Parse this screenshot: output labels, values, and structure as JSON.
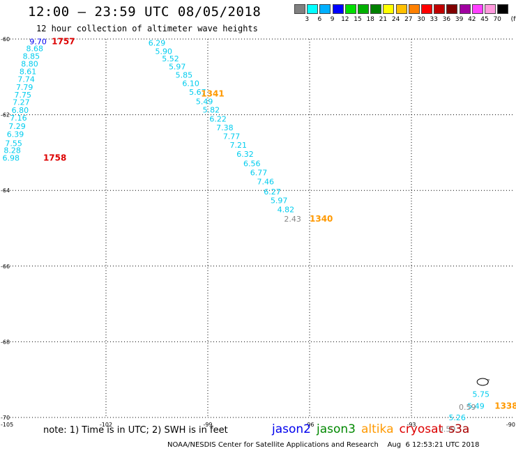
{
  "title": "12:00 – 23:59 UTC 08/05/2018",
  "subtitle": "12 hour collection of altimeter wave heights",
  "legend": {
    "swatches": [
      "#808080",
      "#00ffff",
      "#00b0ff",
      "#0000ff",
      "#00e000",
      "#00b000",
      "#008000",
      "#ffff00",
      "#ffc000",
      "#ff8000",
      "#ff0000",
      "#c00000",
      "#800000",
      "#a000a0",
      "#ff40ff",
      "#ff99dd",
      "#000000"
    ],
    "ticks": [
      "3",
      "6",
      "9",
      "12",
      "15",
      "18",
      "21",
      "24",
      "27",
      "30",
      "33",
      "36",
      "39",
      "42",
      "45",
      "70",
      "(ft)"
    ]
  },
  "note": "note: 1) Time is in UTC; 2) SWH is in feet",
  "satellites": [
    {
      "name": "jason2",
      "color": "#0000ee"
    },
    {
      "name": "jason3",
      "color": "#008800"
    },
    {
      "name": "altika",
      "color": "#ff9900"
    },
    {
      "name": "cryosat",
      "color": "#dd0000"
    },
    {
      "name": "s3a",
      "color": "#aa0000"
    }
  ],
  "footer": "NOAA/NESDIS Center for Satellite Applications and Research    Aug  6 12:53:21 UTC 2018",
  "chart_data": {
    "type": "scatter",
    "xlim": [
      -105,
      -90
    ],
    "ylim": [
      -70,
      -60
    ],
    "xticks": [
      -105,
      -102,
      -99,
      -96,
      -93,
      -90
    ],
    "yticks": [
      -60,
      -62,
      -64,
      -66,
      -68,
      -70
    ],
    "grid": true,
    "series": [
      {
        "name": "cryosat",
        "points": [
          {
            "x": -104.0,
            "y": -60.06,
            "v": "9.70",
            "color": "#0000ee"
          },
          {
            "x": -104.1,
            "y": -60.25,
            "v": "8.68",
            "color": "#00ccee"
          },
          {
            "x": -104.2,
            "y": -60.45,
            "v": "8.85",
            "color": "#00ccee"
          },
          {
            "x": -104.25,
            "y": -60.65,
            "v": "8.80",
            "color": "#00ccee"
          },
          {
            "x": -104.3,
            "y": -60.86,
            "v": "8.61",
            "color": "#00ccee"
          },
          {
            "x": -104.35,
            "y": -61.06,
            "v": "7.74",
            "color": "#00ccee"
          },
          {
            "x": -104.4,
            "y": -61.27,
            "v": "7.79",
            "color": "#00ccee"
          },
          {
            "x": -104.45,
            "y": -61.47,
            "v": "7.75",
            "color": "#00ccee"
          },
          {
            "x": -104.5,
            "y": -61.67,
            "v": "7.27",
            "color": "#00ccee"
          },
          {
            "x": -104.53,
            "y": -61.88,
            "v": "6.80",
            "color": "#00ccee"
          },
          {
            "x": -104.58,
            "y": -62.08,
            "v": "7.16",
            "color": "#00ccee"
          },
          {
            "x": -104.62,
            "y": -62.3,
            "v": "7.29",
            "color": "#00ccee"
          },
          {
            "x": -104.67,
            "y": -62.51,
            "v": "6.39",
            "color": "#00ccee"
          },
          {
            "x": -104.72,
            "y": -62.75,
            "v": "7.55",
            "color": "#00ccee"
          },
          {
            "x": -104.76,
            "y": -62.94,
            "v": "8.28",
            "color": "#00ccee"
          },
          {
            "x": -104.8,
            "y": -63.14,
            "v": "6.98",
            "color": "#00ccee"
          }
        ],
        "labels": [
          {
            "x": -103.6,
            "y": -60.06,
            "text": "1757",
            "color": "#dd0000"
          },
          {
            "x": -103.85,
            "y": -63.14,
            "text": "1758",
            "color": "#dd0000"
          }
        ]
      },
      {
        "name": "altika",
        "points": [
          {
            "x": -100.5,
            "y": -60.1,
            "v": "6.29",
            "color": "#00ccee"
          },
          {
            "x": -100.3,
            "y": -60.32,
            "v": "5.90",
            "color": "#00ccee"
          },
          {
            "x": -100.1,
            "y": -60.52,
            "v": "5.52",
            "color": "#00ccee"
          },
          {
            "x": -99.9,
            "y": -60.73,
            "v": "5.97",
            "color": "#00ccee"
          },
          {
            "x": -99.7,
            "y": -60.95,
            "v": "5.85",
            "color": "#00ccee"
          },
          {
            "x": -99.5,
            "y": -61.17,
            "v": "6.10",
            "color": "#00ccee"
          },
          {
            "x": -99.3,
            "y": -61.4,
            "v": "5.67",
            "color": "#00ccee"
          },
          {
            "x": -99.1,
            "y": -61.65,
            "v": "5.49",
            "color": "#00ccee"
          },
          {
            "x": -98.9,
            "y": -61.87,
            "v": "5.82",
            "color": "#00ccee"
          },
          {
            "x": -98.7,
            "y": -62.11,
            "v": "6.22",
            "color": "#00ccee"
          },
          {
            "x": -98.5,
            "y": -62.34,
            "v": "7.38",
            "color": "#00ccee"
          },
          {
            "x": -98.3,
            "y": -62.57,
            "v": "7.77",
            "color": "#00ccee"
          },
          {
            "x": -98.1,
            "y": -62.8,
            "v": "7.21",
            "color": "#00ccee"
          },
          {
            "x": -97.9,
            "y": -63.04,
            "v": "6.32",
            "color": "#00ccee"
          },
          {
            "x": -97.7,
            "y": -63.29,
            "v": "6.56",
            "color": "#00ccee"
          },
          {
            "x": -97.5,
            "y": -63.53,
            "v": "6.77",
            "color": "#00ccee"
          },
          {
            "x": -97.3,
            "y": -63.77,
            "v": "7.46",
            "color": "#00ccee"
          },
          {
            "x": -97.1,
            "y": -64.03,
            "v": "6.27",
            "color": "#00ccee"
          },
          {
            "x": -96.9,
            "y": -64.26,
            "v": "5.97",
            "color": "#00ccee"
          },
          {
            "x": -96.7,
            "y": -64.5,
            "v": "4.82",
            "color": "#00ccee"
          },
          {
            "x": -96.5,
            "y": -64.75,
            "v": "2.43",
            "color": "#888888"
          }
        ],
        "labels": [
          {
            "x": -99.2,
            "y": -61.45,
            "text": "1341",
            "color": "#ff9900"
          },
          {
            "x": -96.0,
            "y": -64.75,
            "text": "1340",
            "color": "#ff9900"
          }
        ]
      },
      {
        "name": "altika-south",
        "points": [
          {
            "x": -90.75,
            "y": -69.06,
            "v": "7",
            "color": "#888888"
          },
          {
            "x": -90.95,
            "y": -69.38,
            "v": "5.75",
            "color": "#00ccee"
          },
          {
            "x": -91.1,
            "y": -69.7,
            "v": "5.49",
            "color": "#00ccee"
          },
          {
            "x": -91.35,
            "y": -69.72,
            "v": "0.59",
            "color": "#888888"
          },
          {
            "x": -91.65,
            "y": -70.0,
            "v": "5.26",
            "color": "#00ccee"
          },
          {
            "x": -91.95,
            "y": -70.3,
            "v": "0.59",
            "color": "#888888"
          }
        ],
        "labels": [
          {
            "x": -90.55,
            "y": -69.7,
            "text": "1338",
            "color": "#ff9900"
          }
        ]
      }
    ]
  }
}
